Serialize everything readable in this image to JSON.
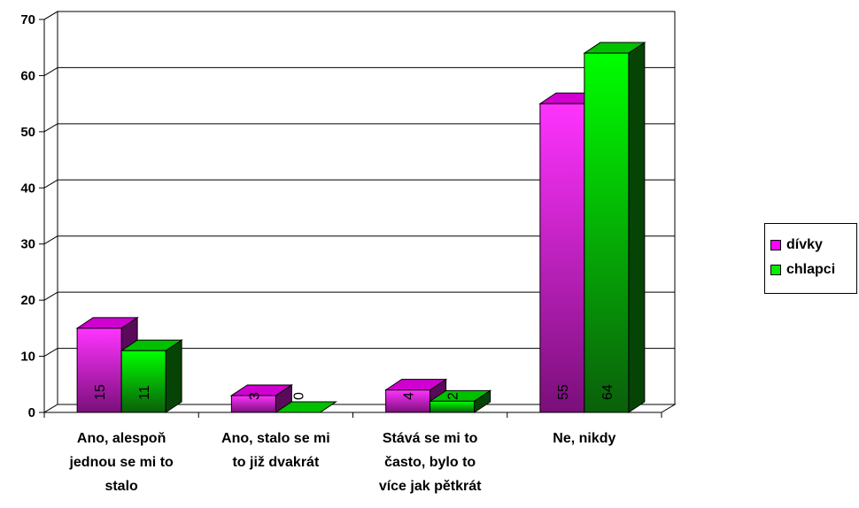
{
  "chart_data": {
    "type": "bar",
    "categories": [
      [
        "Ano, alespoň",
        "jednou se mi to",
        "stalo"
      ],
      [
        "Ano, stalo se mi",
        "to již dvakrát"
      ],
      [
        "Stává se mi to",
        "často, bylo to",
        "více jak pětkrát"
      ],
      [
        "Ne, nikdy"
      ]
    ],
    "series": [
      {
        "name": "dívky",
        "values": [
          15,
          3,
          4,
          55
        ],
        "color": "#ff00ff"
      },
      {
        "name": "chlapci",
        "values": [
          11,
          0,
          2,
          64
        ],
        "color": "#00ee00"
      }
    ],
    "yticks": [
      0,
      10,
      20,
      30,
      40,
      50,
      60,
      70
    ],
    "ylim": [
      0,
      70
    ],
    "grid": true,
    "legend_position": "right",
    "title": "",
    "xlabel": "",
    "ylabel": ""
  }
}
